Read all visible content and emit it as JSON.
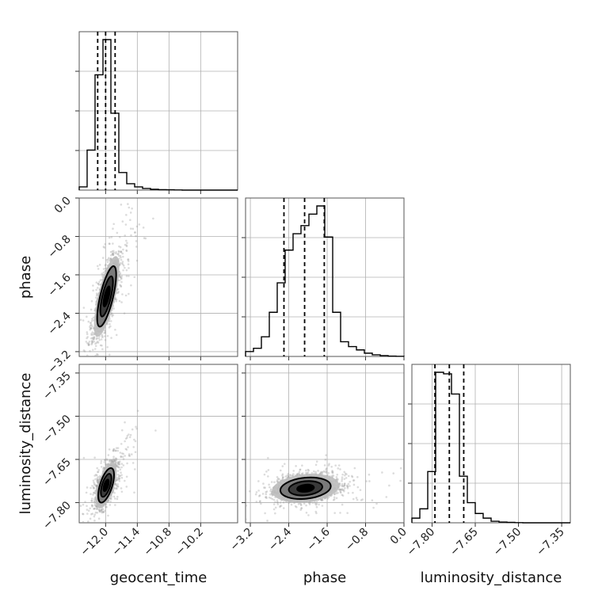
{
  "chart_data": {
    "type": "corner",
    "parameters": [
      "geocent_time",
      "phase",
      "luminosity_distance"
    ],
    "labels": {
      "geocent_time": "geocent_time",
      "phase": "phase",
      "luminosity_distance": "luminosity_distance"
    },
    "ranges": {
      "geocent_time": [
        -12.5,
        -9.5
      ],
      "phase": [
        -3.3,
        0.0
      ],
      "luminosity_distance": [
        -7.87,
        -7.32
      ]
    },
    "ticks": {
      "geocent_time": [
        -12.0,
        -11.4,
        -10.8,
        -10.2
      ],
      "phase": [
        -3.2,
        -2.4,
        -1.6,
        -0.8,
        0.0
      ],
      "luminosity_distance": [
        -7.8,
        -7.65,
        -7.5,
        -7.35
      ]
    },
    "tick_labels": {
      "geocent_time": [
        "−12.0",
        "−11.4",
        "−10.8",
        "−10.2"
      ],
      "phase": [
        "−3.2",
        "−2.4",
        "−1.6",
        "−0.8",
        "0.0"
      ],
      "luminosity_distance": [
        "−7.80",
        "−7.65",
        "−7.50",
        "−7.35"
      ]
    },
    "grid": true,
    "histograms": {
      "geocent_time": {
        "edges": [
          -12.5,
          -12.35,
          -12.2,
          -12.05,
          -11.9,
          -11.75,
          -11.6,
          -11.45,
          -11.3,
          -11.15,
          -11.0,
          -10.85,
          -10.7,
          -10.55,
          -10.4,
          -10.25,
          -10.1,
          -9.95,
          -9.8,
          -9.65,
          -9.5
        ],
        "values": [
          0.02,
          0.25,
          0.72,
          0.94,
          0.48,
          0.11,
          0.04,
          0.02,
          0.01,
          0.005,
          0.003,
          0.002,
          0.001,
          0,
          0,
          0,
          0,
          0,
          0,
          0
        ],
        "quantiles": [
          -12.15,
          -12.0,
          -11.82
        ]
      },
      "phase": {
        "edges": [
          -3.3,
          -3.135,
          -2.97,
          -2.805,
          -2.64,
          -2.475,
          -2.31,
          -2.145,
          -1.98,
          -1.815,
          -1.65,
          -1.485,
          -1.32,
          -1.155,
          -0.99,
          -0.825,
          -0.66,
          -0.495,
          -0.33,
          -0.165,
          0.0
        ],
        "values": [
          0.03,
          0.05,
          0.12,
          0.27,
          0.45,
          0.65,
          0.75,
          0.8,
          0.87,
          0.92,
          0.73,
          0.27,
          0.09,
          0.06,
          0.04,
          0.02,
          0.01,
          0.005,
          0.002,
          0.001
        ],
        "quantiles": [
          -2.5,
          -2.07,
          -1.66
        ]
      },
      "luminosity_distance": {
        "edges": [
          -7.87,
          -7.8425,
          -7.815,
          -7.7875,
          -7.76,
          -7.7325,
          -7.705,
          -7.6775,
          -7.65,
          -7.6225,
          -7.595,
          -7.5675,
          -7.54,
          -7.5125,
          -7.485,
          -7.4575,
          -7.43,
          -7.4025,
          -7.375,
          -7.3475,
          -7.32
        ],
        "values": [
          0.03,
          0.09,
          0.33,
          0.97,
          0.96,
          0.83,
          0.3,
          0.13,
          0.06,
          0.03,
          0.01,
          0.005,
          0.003,
          0.001,
          0,
          0,
          0,
          0,
          0,
          0
        ],
        "quantiles": [
          -7.79,
          -7.74,
          -7.69
        ]
      }
    },
    "pairs": [
      {
        "x": "geocent_time",
        "y": "phase",
        "center": [
          -11.98,
          -2.05
        ],
        "sigma": [
          0.12,
          0.42
        ],
        "rho": 0.72,
        "n_points": 1400
      },
      {
        "x": "geocent_time",
        "y": "luminosity_distance",
        "center": [
          -11.99,
          -7.74
        ],
        "sigma": [
          0.1,
          0.04
        ],
        "rho": 0.6,
        "n_points": 1400
      },
      {
        "x": "phase",
        "y": "luminosity_distance",
        "center": [
          -2.05,
          -7.75
        ],
        "sigma": [
          0.35,
          0.025
        ],
        "rho": 0.2,
        "n_points": 1600
      }
    ],
    "contour_levels": [
      0.5,
      1.0,
      1.5,
      2.0
    ],
    "contour_fill": [
      "#000000",
      "#3a3a3a",
      "#7a7a7a",
      "#bcbcbc"
    ]
  }
}
